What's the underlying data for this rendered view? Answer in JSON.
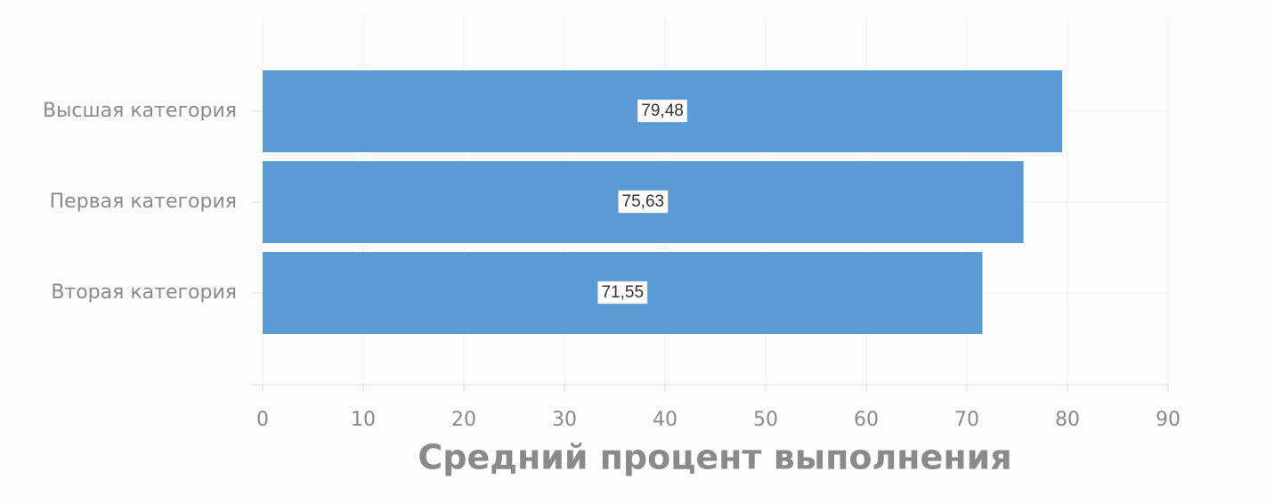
{
  "chart_data": {
    "type": "hbar",
    "categories": [
      "Высшая категория",
      "Первая категория",
      "Вторая категория"
    ],
    "values": [
      79.48,
      75.63,
      71.55
    ],
    "value_labels": [
      "79,48",
      "75,63",
      "71,55"
    ],
    "color": "#5b9bd5",
    "xlabel": "Средний процент выполнения",
    "xlim": [
      0,
      90
    ],
    "xticks": [
      0,
      10,
      20,
      30,
      40,
      50,
      60,
      70,
      80,
      90
    ],
    "grid": true
  }
}
